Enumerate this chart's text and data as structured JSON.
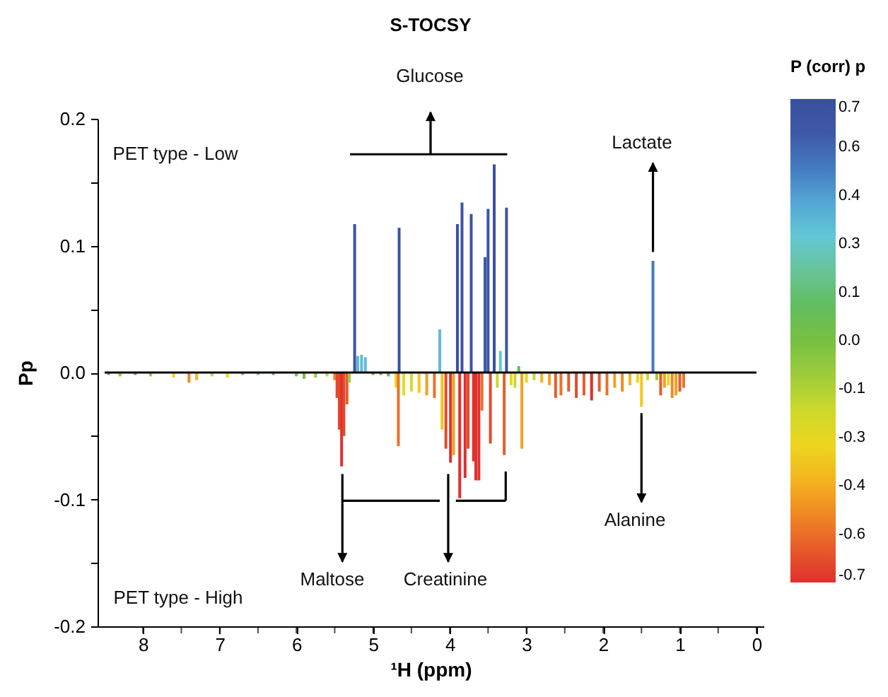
{
  "chart_data": {
    "type": "bar",
    "title": "S-TOCSY",
    "xlabel": "¹H (ppm)",
    "ylabel": "Pp",
    "clabel": "P (corr) p",
    "annotations": [
      "PET type - Low",
      "PET type - High",
      "Glucose",
      "Lactate",
      "Alanine",
      "Maltose",
      "Creatinine"
    ],
    "x": [
      8.45,
      8.3,
      8.1,
      7.9,
      7.6,
      7.4,
      7.3,
      7.1,
      6.9,
      6.7,
      6.5,
      6.3,
      6.0,
      5.9,
      5.75,
      5.6,
      5.5,
      5.47,
      5.44,
      5.41,
      5.38,
      5.34,
      5.31,
      5.24,
      5.2,
      5.15,
      5.1,
      5.0,
      4.9,
      4.8,
      4.7,
      4.67,
      4.66,
      4.6,
      4.5,
      4.4,
      4.3,
      4.2,
      4.13,
      4.1,
      4.05,
      3.99,
      3.95,
      3.9,
      3.87,
      3.84,
      3.8,
      3.76,
      3.72,
      3.69,
      3.66,
      3.62,
      3.58,
      3.54,
      3.5,
      3.47,
      3.42,
      3.38,
      3.34,
      3.29,
      3.26,
      3.2,
      3.15,
      3.1,
      3.06,
      3.0,
      2.9,
      2.8,
      2.7,
      2.62,
      2.55,
      2.45,
      2.35,
      2.25,
      2.15,
      2.05,
      1.95,
      1.85,
      1.75,
      1.65,
      1.55,
      1.5,
      1.42,
      1.35,
      1.3,
      1.25,
      1.2,
      1.15,
      1.1,
      1.05,
      1.0,
      0.95
    ],
    "values": [
      -0.002,
      -0.003,
      -0.002,
      -0.003,
      -0.004,
      -0.008,
      -0.006,
      -0.003,
      -0.004,
      -0.002,
      -0.002,
      -0.002,
      -0.003,
      -0.005,
      -0.004,
      -0.003,
      -0.006,
      -0.02,
      -0.045,
      -0.074,
      -0.05,
      -0.025,
      -0.008,
      0.117,
      0.013,
      0.014,
      0.012,
      -0.002,
      -0.002,
      -0.003,
      -0.012,
      -0.058,
      0.114,
      -0.018,
      -0.015,
      -0.016,
      -0.018,
      -0.02,
      0.034,
      -0.045,
      -0.06,
      -0.071,
      -0.065,
      0.117,
      -0.099,
      0.134,
      -0.083,
      -0.06,
      0.125,
      -0.07,
      -0.085,
      -0.085,
      -0.03,
      0.091,
      0.129,
      -0.056,
      0.164,
      -0.012,
      0.017,
      -0.065,
      0.13,
      -0.01,
      -0.012,
      0.005,
      -0.06,
      -0.008,
      -0.006,
      -0.008,
      -0.01,
      -0.02,
      -0.018,
      -0.015,
      -0.02,
      -0.018,
      -0.022,
      -0.015,
      -0.018,
      -0.012,
      -0.015,
      -0.01,
      -0.008,
      -0.027,
      -0.006,
      0.088,
      -0.006,
      -0.018,
      -0.012,
      -0.01,
      -0.02,
      -0.018,
      -0.015,
      -0.012
    ],
    "cvalues": [
      0.0,
      -0.1,
      0.1,
      -0.1,
      -0.3,
      -0.5,
      -0.4,
      -0.2,
      -0.3,
      0.2,
      0.3,
      0.1,
      0.0,
      0.0,
      -0.1,
      -0.2,
      -0.5,
      -0.65,
      -0.65,
      -0.7,
      -0.65,
      -0.6,
      -0.1,
      0.65,
      0.35,
      0.35,
      0.35,
      0.1,
      0.0,
      0.1,
      -0.3,
      -0.55,
      0.65,
      -0.3,
      -0.25,
      -0.35,
      -0.45,
      -0.55,
      0.35,
      -0.35,
      -0.65,
      -0.7,
      -0.45,
      0.65,
      -0.7,
      0.65,
      -0.7,
      -0.65,
      0.65,
      -0.7,
      -0.7,
      -0.7,
      -0.55,
      0.6,
      0.65,
      -0.65,
      0.7,
      -0.2,
      0.3,
      -0.6,
      0.65,
      -0.3,
      -0.2,
      0.1,
      -0.45,
      -0.3,
      -0.2,
      -0.4,
      -0.45,
      -0.6,
      -0.55,
      -0.6,
      -0.65,
      -0.6,
      -0.7,
      -0.6,
      -0.55,
      -0.45,
      -0.5,
      -0.4,
      -0.3,
      -0.35,
      -0.2,
      0.5,
      -0.1,
      -0.6,
      -0.45,
      -0.3,
      -0.5,
      -0.45,
      -0.6,
      -0.55
    ],
    "xlim": [
      8.5,
      0
    ],
    "xticks": [
      8,
      {
        "value": 7.5,
        "label": null
      },
      7,
      {
        "value": 6.5,
        "label": null
      },
      6,
      {
        "value": 5.5,
        "label": null
      },
      5,
      {
        "value": 4.5,
        "label": null
      },
      4,
      {
        "value": 3.5,
        "label": null
      },
      3,
      {
        "value": 2.5,
        "label": null
      },
      2,
      {
        "value": 1.5,
        "label": null
      },
      1,
      {
        "value": 0.5,
        "label": null
      },
      0
    ],
    "ylim": [
      -0.2,
      0.2
    ],
    "yticks": [
      -0.2,
      {
        "value": -0.15,
        "label": null
      },
      -0.1,
      {
        "value": -0.05,
        "label": null
      },
      {
        "value": 0,
        "label": "0.0"
      },
      {
        "value": 0.05,
        "label": null
      },
      0.1,
      {
        "value": 0.15,
        "label": null
      },
      0.2
    ],
    "clim": [
      -0.7,
      0.7
    ],
    "cticks": [
      {
        "value": 0.7,
        "label": "0.7"
      },
      {
        "value": 0.56,
        "label": "0.6"
      },
      {
        "value": 0.42,
        "label": "0.4"
      },
      {
        "value": 0.28,
        "label": "0.3"
      },
      {
        "value": 0.14,
        "label": "0.1"
      },
      {
        "value": 0,
        "label": "0.0"
      },
      {
        "value": -0.14,
        "label": "-0.1"
      },
      {
        "value": -0.28,
        "label": "-0.3"
      },
      {
        "value": -0.42,
        "label": "-0.4"
      },
      {
        "value": -0.56,
        "label": "-0.6"
      },
      {
        "value": -0.7,
        "label": "-0.7"
      }
    ],
    "ref_lines": [
      {
        "axis": "y",
        "value": 0,
        "color": "#000000"
      }
    ],
    "grid": false
  }
}
